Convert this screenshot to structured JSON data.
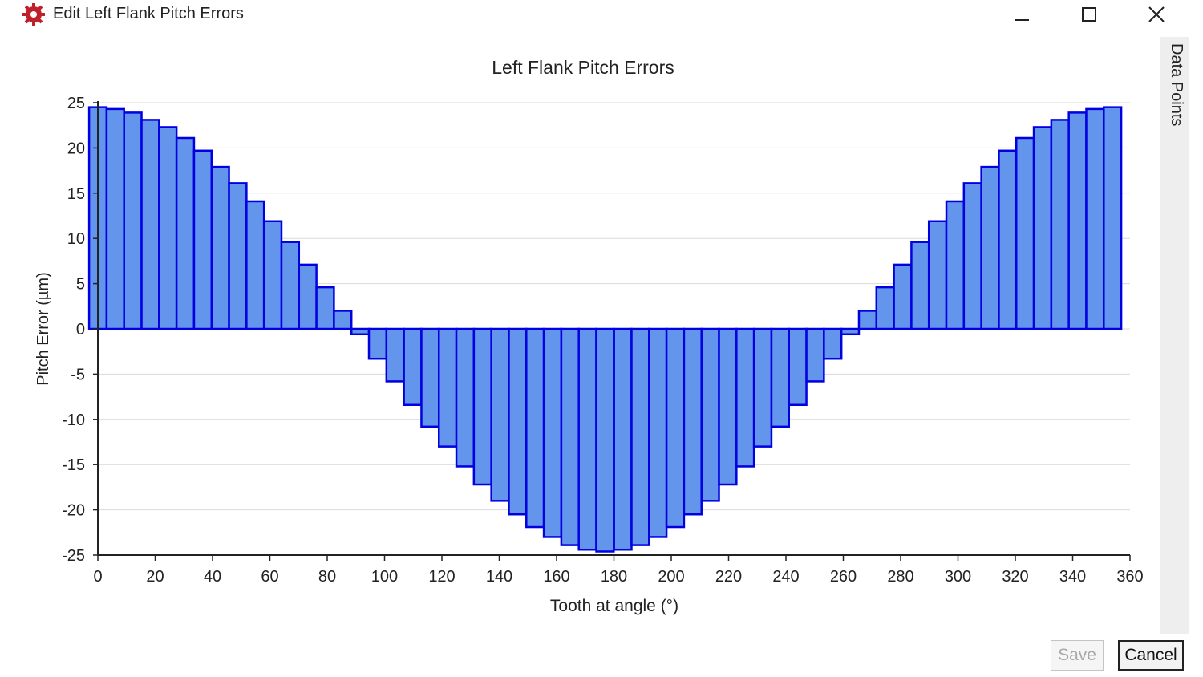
{
  "window": {
    "title": "Edit Left Flank Pitch Errors",
    "icon": "gear-icon",
    "controls": [
      "minimize-icon",
      "maximize-icon",
      "close-icon"
    ]
  },
  "side_tab": {
    "label": "Data Points"
  },
  "buttons": {
    "save_label": "Save",
    "cancel_label": "Cancel"
  },
  "colors": {
    "bar_fill": "#6495ed",
    "bar_stroke": "#0000e0",
    "icon_red": "#c0202a"
  },
  "chart_data": {
    "type": "bar",
    "title": "Left Flank Pitch Errors",
    "xlabel": "Tooth at angle (°)",
    "ylabel": "Pitch Error (µm)",
    "xlim": [
      0,
      360
    ],
    "ylim": [
      -25,
      25
    ],
    "xticks": [
      0,
      20,
      40,
      60,
      80,
      100,
      120,
      140,
      160,
      180,
      200,
      220,
      240,
      260,
      280,
      300,
      320,
      340,
      360
    ],
    "yticks": [
      25,
      20,
      15,
      10,
      5,
      0,
      -5,
      -10,
      -15,
      -20,
      -25
    ],
    "grid": "horizontal",
    "legend": "none",
    "bar_width_deg": 6.1,
    "x": [
      0,
      6.1,
      12.2,
      18.3,
      24.4,
      30.5,
      36.6,
      42.7,
      48.8,
      54.9,
      61,
      67.1,
      73.2,
      79.3,
      85.4,
      91.5,
      97.6,
      103.7,
      109.8,
      115.9,
      122,
      128.1,
      134.2,
      140.3,
      146.4,
      152.5,
      158.6,
      164.7,
      170.8,
      176.9,
      183.1,
      189.2,
      195.3,
      201.4,
      207.5,
      213.6,
      219.7,
      225.8,
      231.9,
      238,
      244.1,
      250.2,
      256.3,
      262.4,
      268.5,
      274.6,
      280.7,
      286.8,
      292.9,
      299,
      305.1,
      311.2,
      317.3,
      323.4,
      329.5,
      335.6,
      341.7,
      347.8,
      353.9
    ],
    "values": [
      24.5,
      24.3,
      23.9,
      23.1,
      22.3,
      21.1,
      19.7,
      17.9,
      16.1,
      14.1,
      11.9,
      9.6,
      7.1,
      4.6,
      2.0,
      -0.6,
      -3.3,
      -5.8,
      -8.4,
      -10.8,
      -13.0,
      -15.2,
      -17.2,
      -19.0,
      -20.5,
      -21.9,
      -23.0,
      -23.9,
      -24.4,
      -24.6,
      -24.4,
      -23.9,
      -23.0,
      -21.9,
      -20.5,
      -19.0,
      -17.2,
      -15.2,
      -13.0,
      -10.8,
      -8.4,
      -5.8,
      -3.3,
      -0.6,
      2.0,
      4.6,
      7.1,
      9.6,
      11.9,
      14.1,
      16.1,
      17.9,
      19.7,
      21.1,
      22.3,
      23.1,
      23.9,
      24.3,
      24.5
    ]
  }
}
